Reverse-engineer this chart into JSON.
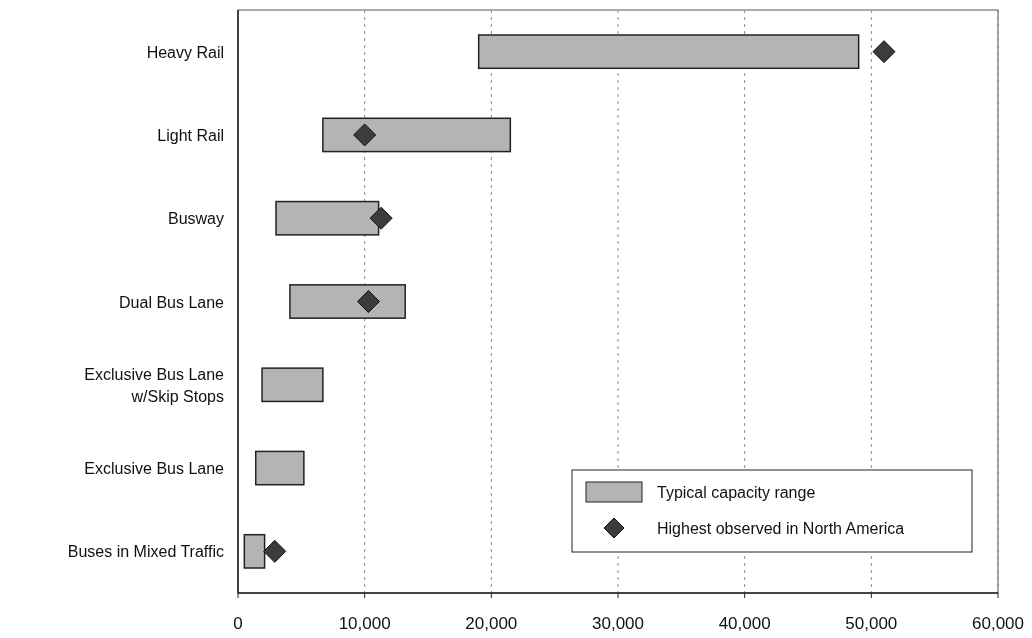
{
  "chart_data": {
    "type": "bar",
    "orientation": "horizontal",
    "categories": [
      "Heavy Rail",
      "Light Rail",
      "Busway",
      "Dual Bus Lane",
      "Exclusive Bus Lane\nw/Skip Stops",
      "Exclusive Bus Lane",
      "Buses in Mixed Traffic"
    ],
    "series": [
      {
        "name": "Typical capacity range",
        "color": "#b4b4b4",
        "base": [
          19000,
          6700,
          3000,
          4100,
          1900,
          1400,
          500
        ],
        "values": [
          30000,
          14800,
          8100,
          9100,
          4800,
          3800,
          1600
        ]
      },
      {
        "name": "Highest observed in North America",
        "type": "scatter",
        "marker": "diamond",
        "color": "#3c3c3c",
        "x": [
          "Heavy Rail",
          "Light Rail",
          "Busway",
          "Dual Bus Lane",
          "Buses in Mixed Traffic"
        ],
        "values": [
          51000,
          10000,
          11300,
          10300,
          2900
        ]
      }
    ],
    "xlim": [
      0,
      60000
    ],
    "xticks": [
      {
        "value": 0,
        "label": "0"
      },
      {
        "value": 10000,
        "label": "10,000"
      },
      {
        "value": 20000,
        "label": "20,000"
      },
      {
        "value": 30000,
        "label": "30,000"
      },
      {
        "value": 40000,
        "label": "40,000"
      },
      {
        "value": 50000,
        "label": "50,000"
      },
      {
        "value": 60000,
        "label": "60,000"
      }
    ],
    "grid": "x",
    "legend": "bottom right"
  }
}
